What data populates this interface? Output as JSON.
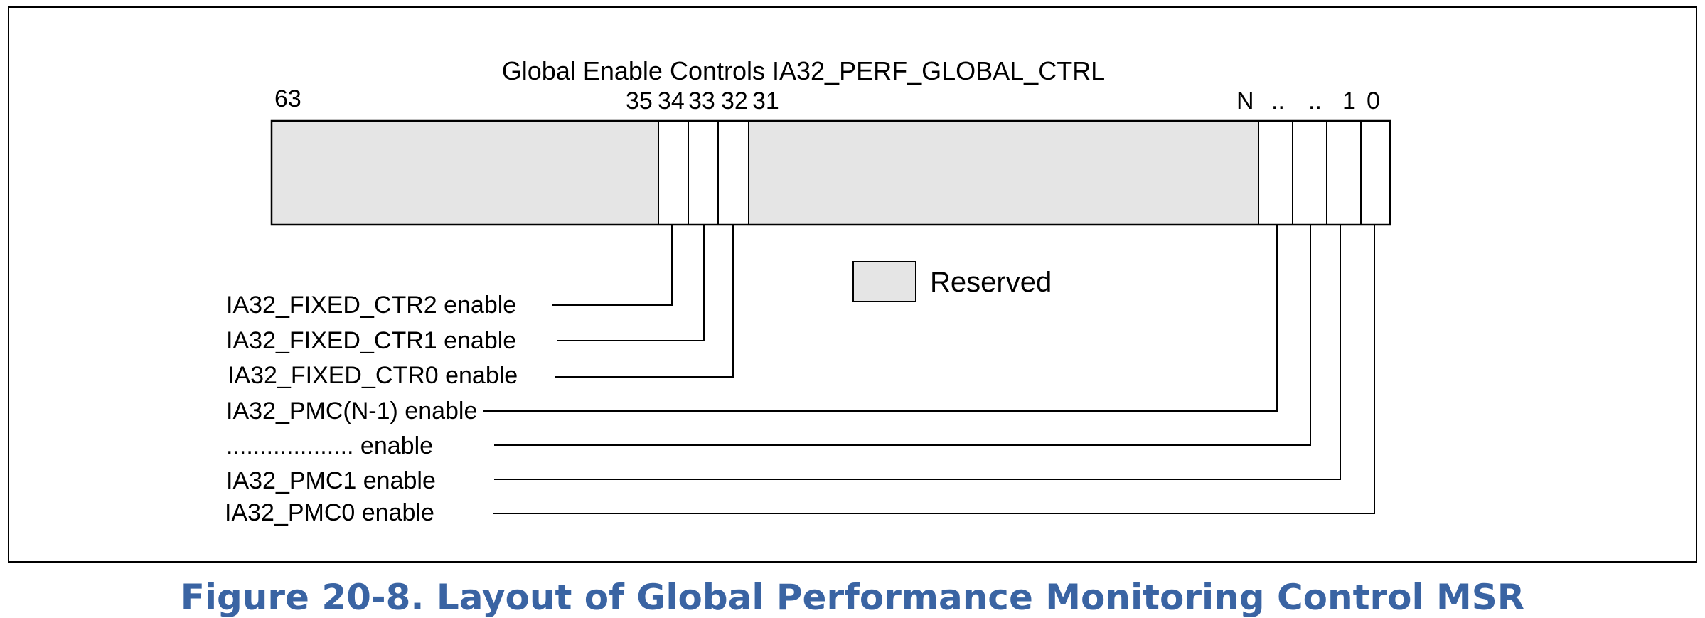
{
  "register": {
    "title": "Global Enable Controls IA32_PERF_GLOBAL_CTRL",
    "bit_labels": {
      "b63": "63",
      "b35": "35",
      "b34": "34",
      "b33": "33",
      "b32": "32",
      "b31": "31",
      "bN": "N",
      "dots1": "..",
      "dots2": "..",
      "b1": "1",
      "b0": "0"
    }
  },
  "legend": {
    "reserved_label": "Reserved"
  },
  "fields": [
    {
      "label": "IA32_FIXED_CTR2 enable"
    },
    {
      "label": "IA32_FIXED_CTR1 enable"
    },
    {
      "label": "IA32_FIXED_CTR0 enable"
    },
    {
      "label": "IA32_PMC(N-1) enable"
    },
    {
      "label": "................... enable"
    },
    {
      "label": "IA32_PMC1 enable"
    },
    {
      "label": "IA32_PMC0 enable"
    }
  ],
  "caption": "Figure 20-8.  Layout of Global Performance Monitoring Control MSR",
  "colors": {
    "reserved_fill": "#e5e5e5",
    "caption": "#3a64a3",
    "line": "#000000"
  }
}
